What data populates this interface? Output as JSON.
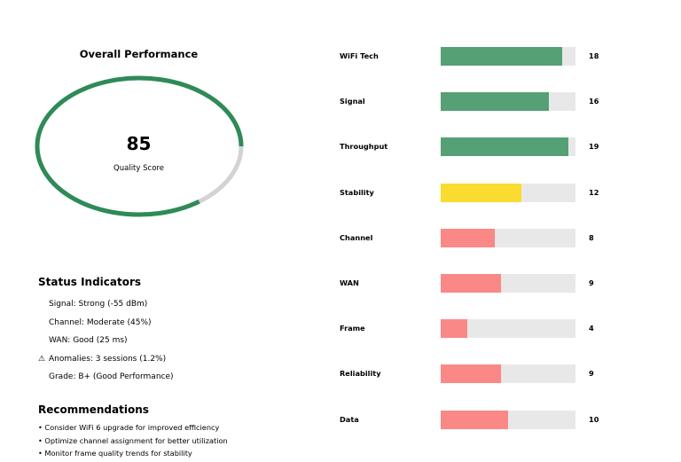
{
  "overall": {
    "title": "Overall Performance",
    "score": 85,
    "score_text": "85",
    "score_label": "Quality Score",
    "max": 100,
    "arc_color": "#2e8b57",
    "track_color": "#d3d3d3"
  },
  "status": {
    "title": "Status Indicators",
    "items": [
      {
        "icon": "signal-icon",
        "icon_glyph": "",
        "text": "Signal: Strong (-55 dBm)"
      },
      {
        "icon": "channel-icon",
        "icon_glyph": "",
        "text": "Channel: Moderate (45%)"
      },
      {
        "icon": "wan-icon",
        "icon_glyph": "",
        "text": "WAN: Good (25 ms)"
      },
      {
        "icon": "warning-icon",
        "icon_glyph": "⚠",
        "text": "Anomalies: 3 sessions (1.2%)"
      },
      {
        "icon": "grade-icon",
        "icon_glyph": "",
        "text": "Grade: B+ (Good Performance)"
      }
    ]
  },
  "recommendations": {
    "title": "Recommendations",
    "items": [
      "• Consider WiFi 6 upgrade for improved efficiency",
      "• Optimize channel assignment for better utilization",
      "• Monitor frame quality trends for stability"
    ]
  },
  "metrics": {
    "max": 20,
    "colors": {
      "good": "#55a074",
      "warn": "#f9dc2f",
      "bad": "#fa8887",
      "track": "#e8e8e8"
    },
    "items": [
      {
        "label": "WiFi Tech",
        "value": 18,
        "value_text": "18",
        "status": "good"
      },
      {
        "label": "Signal",
        "value": 16,
        "value_text": "16",
        "status": "good"
      },
      {
        "label": "Throughput",
        "value": 19,
        "value_text": "19",
        "status": "good"
      },
      {
        "label": "Stability",
        "value": 12,
        "value_text": "12",
        "status": "warn"
      },
      {
        "label": "Channel",
        "value": 8,
        "value_text": "8",
        "status": "bad"
      },
      {
        "label": "WAN",
        "value": 9,
        "value_text": "9",
        "status": "bad"
      },
      {
        "label": "Frame",
        "value": 4,
        "value_text": "4",
        "status": "bad"
      },
      {
        "label": "Reliability",
        "value": 9,
        "value_text": "9",
        "status": "bad"
      },
      {
        "label": "Data",
        "value": 10,
        "value_text": "10",
        "status": "bad"
      }
    ]
  }
}
